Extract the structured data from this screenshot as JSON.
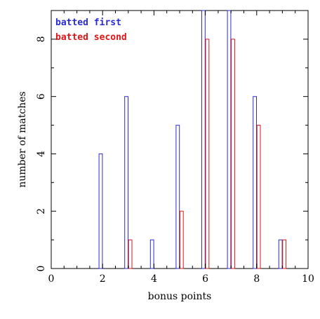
{
  "chart_data": {
    "type": "bar",
    "xlabel": "bonus points",
    "ylabel": "number of matches",
    "xlim": [
      0,
      10
    ],
    "ylim": [
      0,
      9
    ],
    "xticks": [
      "0",
      "2",
      "4",
      "6",
      "8",
      "10"
    ],
    "yticks": [
      "0",
      "2",
      "4",
      "6",
      "8"
    ],
    "grid": false,
    "legend_position": "top-left",
    "categories": [
      2,
      3,
      4,
      5,
      6,
      7,
      8,
      9
    ],
    "series": [
      {
        "name": "batted first",
        "color": "#2b2bd9",
        "values": [
          4,
          6,
          1,
          5,
          9,
          9,
          6,
          1
        ]
      },
      {
        "name": "batted second",
        "color": "#e01515",
        "values": [
          0,
          1,
          0,
          2,
          8,
          8,
          5,
          1
        ]
      }
    ]
  }
}
